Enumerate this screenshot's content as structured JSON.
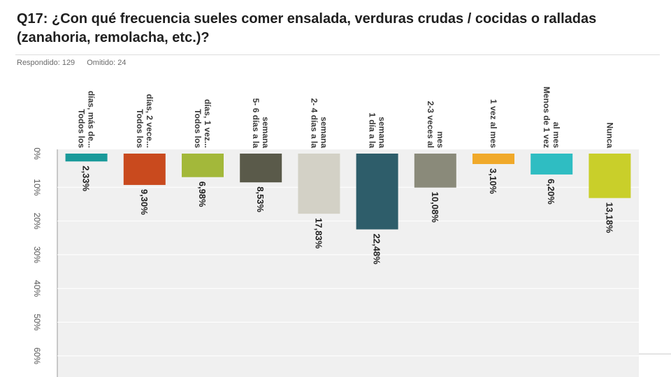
{
  "title": "Q17: ¿Con qué frecuencia sueles comer ensalada, verduras crudas / cocidas o ralladas (zanahoria, remolacha, etc.)?",
  "meta": {
    "answered": "Respondido: 129",
    "skipped": "Omitido: 24"
  },
  "chart_data": {
    "type": "bar",
    "orientation": "rotated",
    "categories": [
      [
        "Todos los",
        "días, más de..."
      ],
      [
        "Todos los",
        "días, 2 vece..."
      ],
      [
        "Todos los",
        "días, 1 vez..."
      ],
      [
        "5- 6 días a la",
        "semana"
      ],
      [
        "2- 4 días a la",
        "semana"
      ],
      [
        "1 día a la",
        "semana"
      ],
      [
        "2-3 veces al",
        "mes"
      ],
      [
        "1 vez al mes"
      ],
      [
        "Menos de 1 vez",
        "al mes"
      ],
      [
        "Nunca"
      ]
    ],
    "values": [
      2.33,
      9.3,
      6.98,
      8.53,
      17.83,
      22.48,
      10.08,
      3.1,
      6.2,
      13.18
    ],
    "value_labels": [
      "2,33%",
      "9,30%",
      "6,98%",
      "8,53%",
      "17,83%",
      "22,48%",
      "10,08%",
      "3,10%",
      "6,20%",
      "13,18%"
    ],
    "colors": [
      "#1a9a9a",
      "#c94a1e",
      "#a3b83a",
      "#5a5a4a",
      "#d3d1c6",
      "#2e5d6a",
      "#8a8a7a",
      "#f0a92a",
      "#2fbdc2",
      "#c9cf2a"
    ],
    "ticks": [
      "0%",
      "10%",
      "20%",
      "30%",
      "40%",
      "50%",
      "60%"
    ],
    "ylim": [
      0,
      60
    ],
    "grid": true,
    "background": "#f0f0f0"
  }
}
